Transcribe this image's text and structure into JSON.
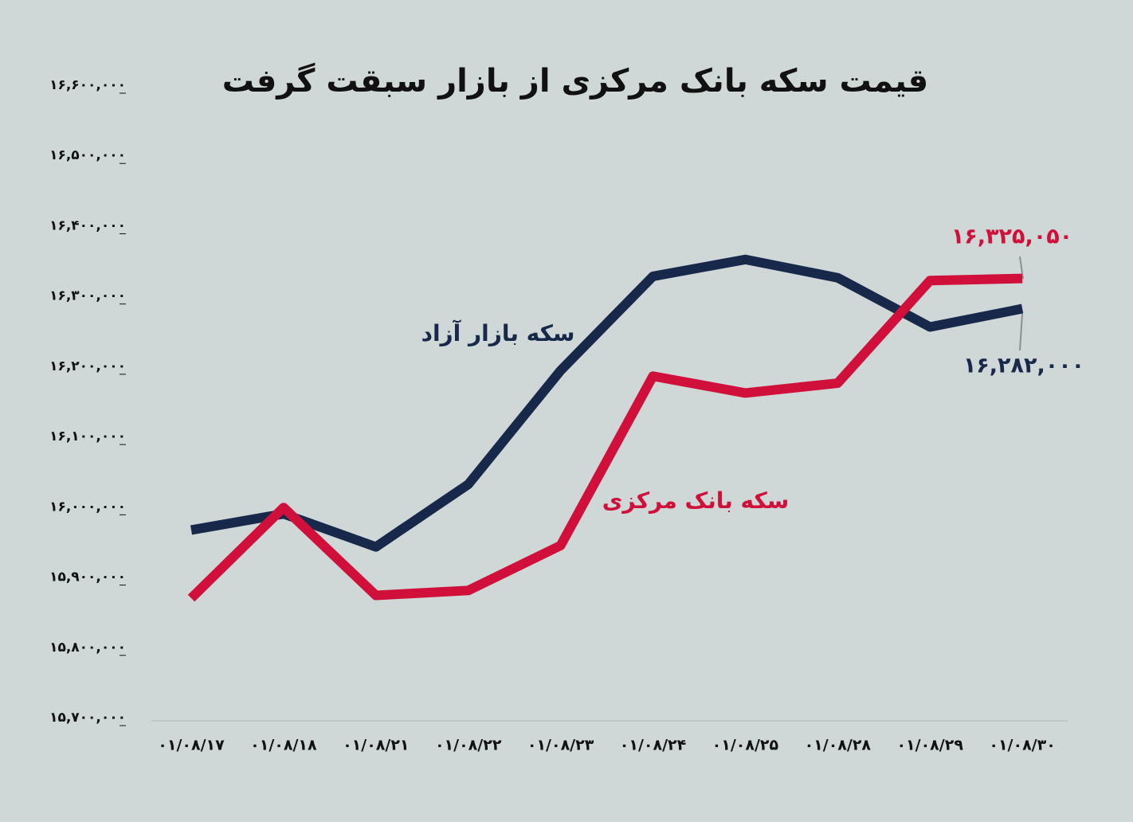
{
  "chart_data": {
    "type": "line",
    "title": "قیمت سکه بانک مرکزی از بازار سبقت گرفت",
    "categories": [
      "۰۱/۰۸/۱۷",
      "۰۱/۰۸/۱۸",
      "۰۱/۰۸/۲۱",
      "۰۱/۰۸/۲۲",
      "۰۱/۰۸/۲۳",
      "۰۱/۰۸/۲۴",
      "۰۱/۰۸/۲۵",
      "۰۱/۰۸/۲۸",
      "۰۱/۰۸/۲۹",
      "۰۱/۰۸/۳۰"
    ],
    "series": [
      {
        "name": "سکه بازار آزاد",
        "color": "#17284a",
        "values": [
          15967000,
          15990000,
          15943000,
          16032000,
          16194000,
          16328000,
          16352000,
          16326000,
          16256000,
          16282000
        ],
        "value_labels": [
          null,
          null,
          null,
          null,
          null,
          null,
          null,
          null,
          null,
          "۱۶,۲۸۲,۰۰۰"
        ]
      },
      {
        "name": "سکه بانک مرکزی",
        "color": "#d0103a",
        "values": [
          15870000,
          15999000,
          15874000,
          15881000,
          15945000,
          16186000,
          16162000,
          16176000,
          16322000,
          16325050
        ],
        "value_labels": [
          null,
          null,
          null,
          null,
          null,
          null,
          null,
          null,
          null,
          "۱۶,۳۲۵,۰۵۰"
        ]
      }
    ],
    "ylim": [
      15700000,
      16600000
    ],
    "yticks": [
      {
        "value": 15700000,
        "label": "۱۵,۷۰۰,۰۰۰"
      },
      {
        "value": 15800000,
        "label": "۱۵,۸۰۰,۰۰۰"
      },
      {
        "value": 15900000,
        "label": "۱۵,۹۰۰,۰۰۰"
      },
      {
        "value": 16000000,
        "label": "۱۶,۰۰۰,۰۰۰"
      },
      {
        "value": 16100000,
        "label": "۱۶,۱۰۰,۰۰۰"
      },
      {
        "value": 16200000,
        "label": "۱۶,۲۰۰,۰۰۰"
      },
      {
        "value": 16300000,
        "label": "۱۶,۳۰۰,۰۰۰"
      },
      {
        "value": 16400000,
        "label": "۱۶,۴۰۰,۰۰۰"
      },
      {
        "value": 16500000,
        "label": "۱۶,۵۰۰,۰۰۰"
      },
      {
        "value": 16600000,
        "label": "۱۶,۶۰۰,۰۰۰"
      }
    ]
  }
}
